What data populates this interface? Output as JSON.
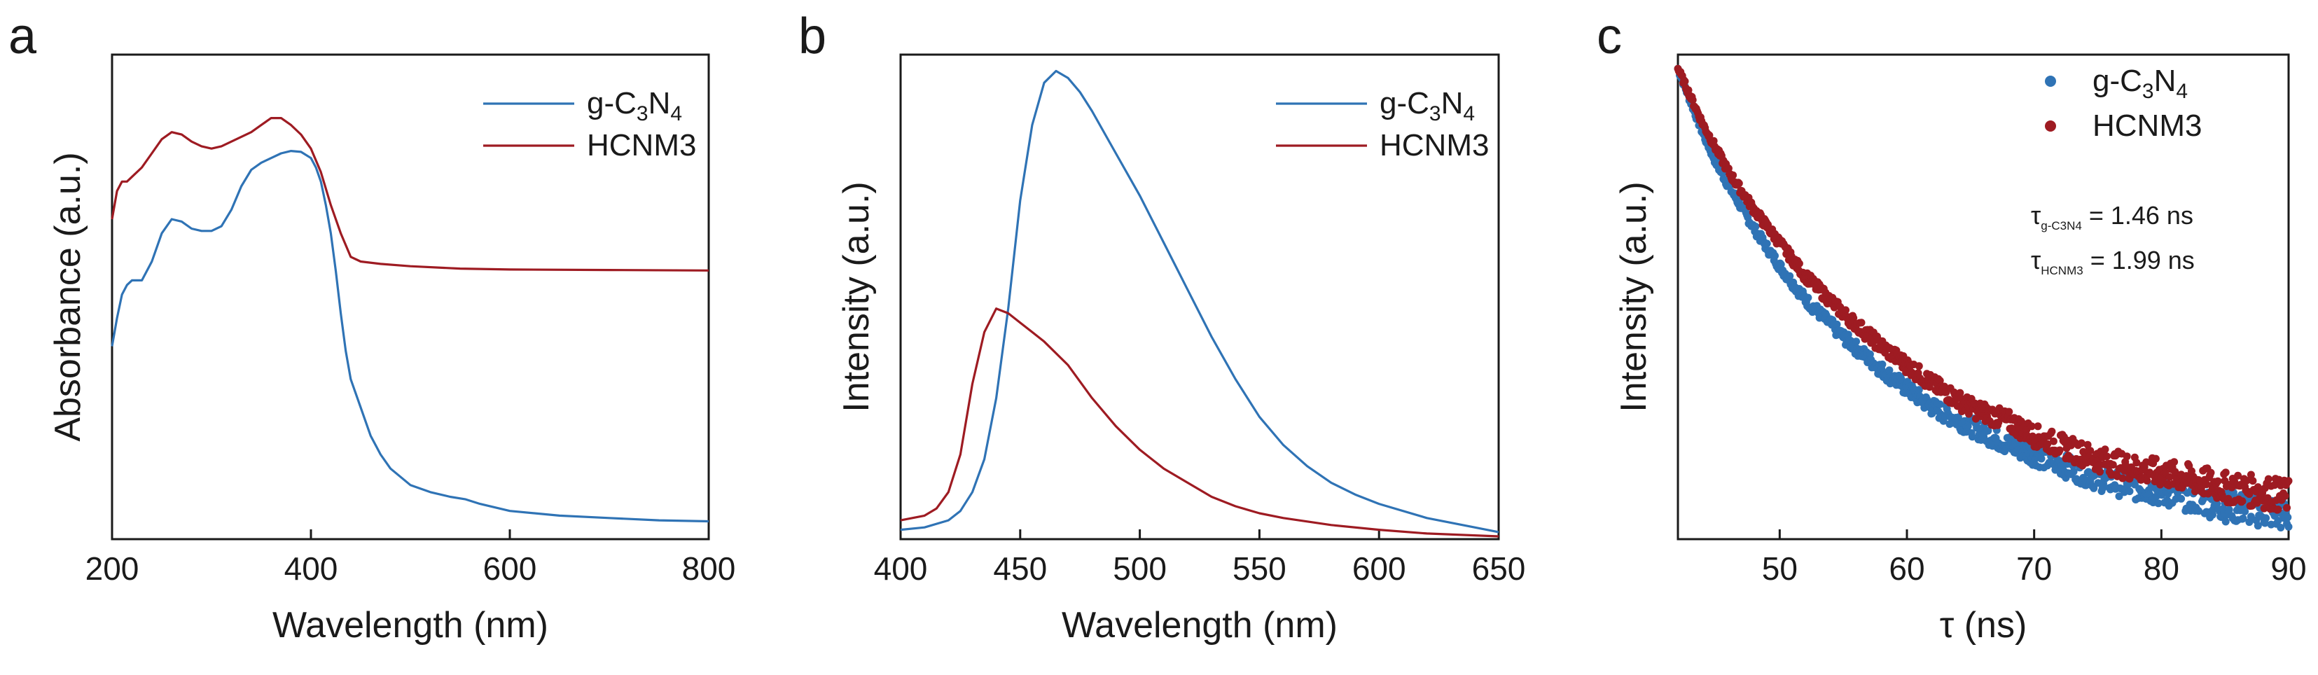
{
  "colors": {
    "g_c3n4": "#2f73b5",
    "hcnm3": "#9e1b22"
  },
  "chart_data": [
    {
      "panel": "a",
      "type": "line",
      "xlabel": "Wavelength (nm)",
      "ylabel": "Absorbance (a.u.)",
      "xlim": [
        200,
        800
      ],
      "ylim": [
        0,
        1
      ],
      "x_ticks": [
        200,
        400,
        600,
        800
      ],
      "legend": {
        "position": "top-right"
      },
      "series": [
        {
          "name": "g-C3N4",
          "label_parts": [
            "g-C",
            "3",
            "N",
            "4"
          ],
          "color": "#2f73b5",
          "x": [
            200,
            205,
            210,
            215,
            220,
            230,
            240,
            250,
            260,
            270,
            280,
            290,
            300,
            310,
            320,
            330,
            340,
            350,
            360,
            370,
            380,
            390,
            400,
            405,
            410,
            415,
            420,
            425,
            430,
            435,
            440,
            450,
            460,
            470,
            480,
            500,
            520,
            540,
            555,
            570,
            600,
            650,
            700,
            750,
            800
          ],
          "y": [
            0.41,
            0.47,
            0.52,
            0.54,
            0.55,
            0.55,
            0.59,
            0.65,
            0.68,
            0.675,
            0.66,
            0.655,
            0.655,
            0.665,
            0.7,
            0.75,
            0.785,
            0.8,
            0.81,
            0.82,
            0.825,
            0.823,
            0.81,
            0.79,
            0.76,
            0.71,
            0.65,
            0.57,
            0.48,
            0.4,
            0.34,
            0.28,
            0.22,
            0.18,
            0.15,
            0.115,
            0.1,
            0.09,
            0.085,
            0.075,
            0.06,
            0.05,
            0.045,
            0.04,
            0.038
          ]
        },
        {
          "name": "HCNM3",
          "label_parts": [
            "HCNM3"
          ],
          "color": "#9e1b22",
          "x": [
            200,
            205,
            210,
            215,
            220,
            230,
            240,
            250,
            260,
            270,
            280,
            290,
            300,
            310,
            320,
            330,
            340,
            350,
            360,
            370,
            380,
            390,
            400,
            410,
            420,
            430,
            440,
            450,
            470,
            500,
            550,
            600,
            700,
            800
          ],
          "y": [
            0.68,
            0.74,
            0.76,
            0.76,
            0.77,
            0.79,
            0.82,
            0.85,
            0.865,
            0.86,
            0.845,
            0.835,
            0.83,
            0.835,
            0.845,
            0.855,
            0.865,
            0.88,
            0.895,
            0.895,
            0.88,
            0.86,
            0.83,
            0.78,
            0.71,
            0.65,
            0.6,
            0.59,
            0.585,
            0.58,
            0.575,
            0.573,
            0.572,
            0.571
          ]
        }
      ]
    },
    {
      "panel": "b",
      "type": "line",
      "xlabel": "Wavelength (nm)",
      "ylabel": "Intensity (a.u.)",
      "xlim": [
        400,
        650
      ],
      "ylim": [
        0,
        1
      ],
      "x_ticks": [
        400,
        450,
        500,
        550,
        600,
        650
      ],
      "legend": {
        "position": "top-right"
      },
      "series": [
        {
          "name": "g-C3N4",
          "label_parts": [
            "g-C",
            "3",
            "N",
            "4"
          ],
          "color": "#2f73b5",
          "x": [
            400,
            410,
            420,
            425,
            430,
            435,
            440,
            445,
            450,
            455,
            460,
            465,
            470,
            475,
            480,
            490,
            500,
            510,
            520,
            530,
            540,
            550,
            560,
            570,
            580,
            590,
            600,
            620,
            640,
            650
          ],
          "y": [
            0.02,
            0.025,
            0.04,
            0.06,
            0.1,
            0.17,
            0.3,
            0.49,
            0.72,
            0.88,
            0.97,
            0.995,
            0.98,
            0.95,
            0.91,
            0.82,
            0.73,
            0.63,
            0.53,
            0.43,
            0.34,
            0.26,
            0.2,
            0.155,
            0.12,
            0.095,
            0.075,
            0.045,
            0.025,
            0.015
          ]
        },
        {
          "name": "HCNM3",
          "label_parts": [
            "HCNM3"
          ],
          "color": "#9e1b22",
          "x": [
            400,
            410,
            415,
            420,
            425,
            430,
            435,
            440,
            445,
            450,
            455,
            460,
            470,
            480,
            490,
            500,
            510,
            520,
            530,
            540,
            550,
            560,
            580,
            600,
            620,
            650
          ],
          "y": [
            0.04,
            0.05,
            0.065,
            0.1,
            0.18,
            0.33,
            0.44,
            0.49,
            0.48,
            0.46,
            0.44,
            0.42,
            0.37,
            0.3,
            0.24,
            0.19,
            0.15,
            0.12,
            0.09,
            0.07,
            0.055,
            0.045,
            0.03,
            0.02,
            0.012,
            0.006
          ]
        }
      ]
    },
    {
      "panel": "c",
      "type": "scatter",
      "xlabel": "τ (ns)",
      "ylabel": "Intensity (a.u.)",
      "xlim": [
        42,
        90
      ],
      "ylim": [
        0,
        1
      ],
      "x_ticks": [
        50,
        60,
        70,
        80,
        90
      ],
      "legend": {
        "position": "top-right"
      },
      "annotations": [
        {
          "symbol": "τ",
          "subscript": "g-C3N4",
          "text": " = 1.46 ns"
        },
        {
          "symbol": "τ",
          "subscript": "HCNM3",
          "text": " = 1.99 ns"
        }
      ],
      "series": [
        {
          "name": "g-C3N4",
          "label_parts": [
            "g-C",
            "3",
            "N",
            "4"
          ],
          "color": "#2f73b5",
          "model": "exponential decay",
          "x": [
            42,
            43,
            44,
            45,
            46,
            48,
            50,
            52,
            55,
            58,
            60,
            62,
            65,
            68,
            70,
            72,
            75,
            78,
            80,
            82,
            85,
            88,
            90
          ],
          "y": [
            1.0,
            0.93,
            0.86,
            0.8,
            0.75,
            0.66,
            0.58,
            0.51,
            0.43,
            0.36,
            0.32,
            0.28,
            0.24,
            0.2,
            0.18,
            0.16,
            0.13,
            0.11,
            0.1,
            0.09,
            0.07,
            0.06,
            0.05
          ]
        },
        {
          "name": "HCNM3",
          "label_parts": [
            "HCNM3"
          ],
          "color": "#9e1b22",
          "model": "exponential decay",
          "x": [
            42,
            43,
            44,
            45,
            46,
            48,
            50,
            52,
            55,
            58,
            60,
            62,
            65,
            68,
            70,
            72,
            75,
            78,
            80,
            82,
            85,
            88,
            90
          ],
          "y": [
            1.0,
            0.94,
            0.88,
            0.83,
            0.78,
            0.7,
            0.63,
            0.56,
            0.48,
            0.41,
            0.37,
            0.33,
            0.28,
            0.25,
            0.22,
            0.2,
            0.17,
            0.15,
            0.14,
            0.13,
            0.11,
            0.1,
            0.09
          ]
        }
      ]
    }
  ]
}
